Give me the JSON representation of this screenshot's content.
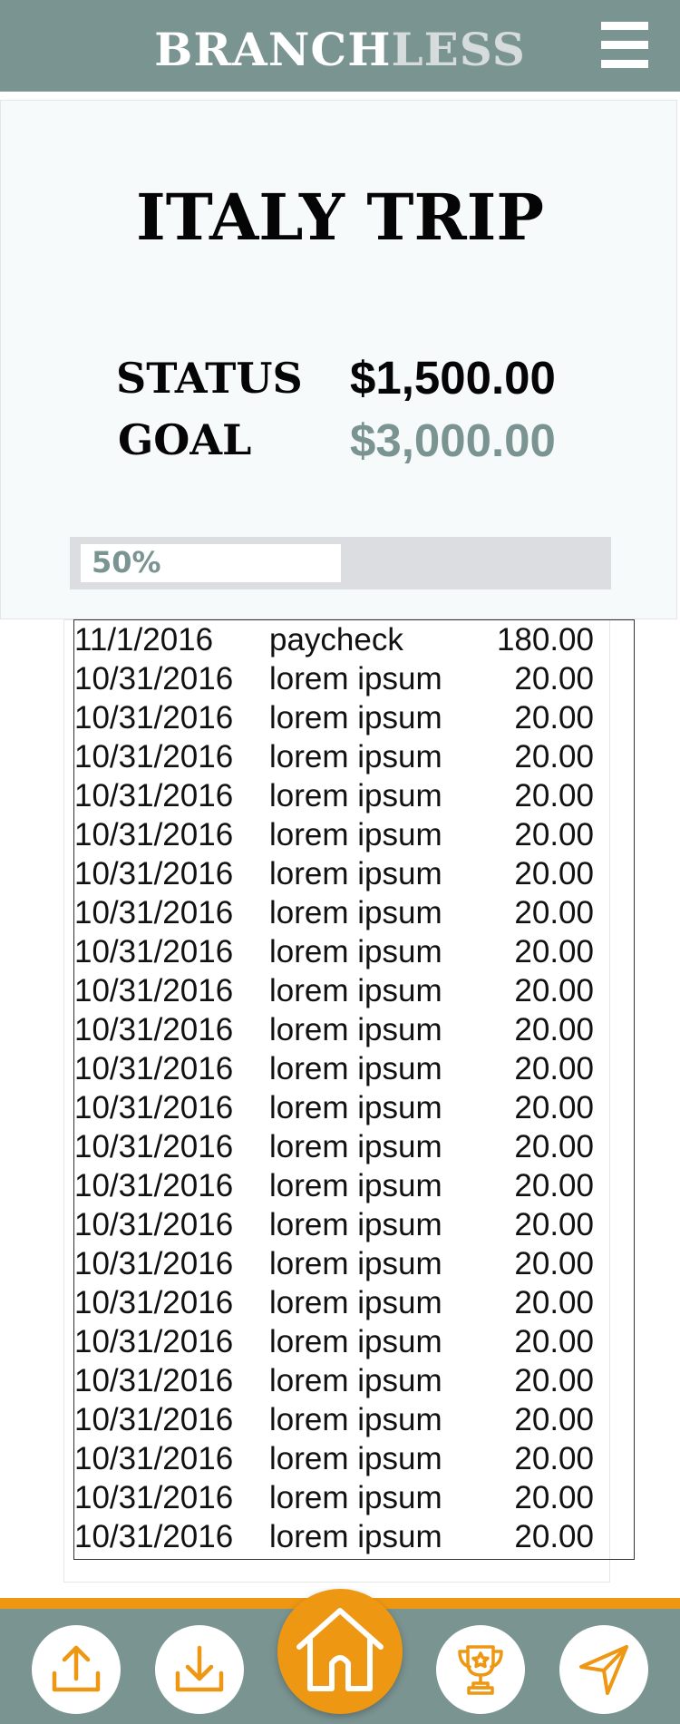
{
  "header": {
    "brand_primary": "BRANCH",
    "brand_secondary": "LESS",
    "menu_icon": "hamburger-menu-icon"
  },
  "goal_card": {
    "title": "ITALY TRIP",
    "status_label": "STATUS",
    "status_amount": "$1,500.00",
    "goal_label": "GOAL",
    "goal_amount": "$3,000.00",
    "progress_label": "50%",
    "progress_fraction": 0.5
  },
  "transactions": [
    {
      "date": "11/1/2016",
      "description": "paycheck",
      "amount": "180.00"
    },
    {
      "date": "10/31/2016",
      "description": "lorem ipsum",
      "amount": "20.00"
    },
    {
      "date": "10/31/2016",
      "description": "lorem ipsum",
      "amount": "20.00"
    },
    {
      "date": "10/31/2016",
      "description": "lorem ipsum",
      "amount": "20.00"
    },
    {
      "date": "10/31/2016",
      "description": "lorem ipsum",
      "amount": "20.00"
    },
    {
      "date": "10/31/2016",
      "description": "lorem ipsum",
      "amount": "20.00"
    },
    {
      "date": "10/31/2016",
      "description": "lorem ipsum",
      "amount": "20.00"
    },
    {
      "date": "10/31/2016",
      "description": "lorem ipsum",
      "amount": "20.00"
    },
    {
      "date": "10/31/2016",
      "description": "lorem ipsum",
      "amount": "20.00"
    },
    {
      "date": "10/31/2016",
      "description": "lorem ipsum",
      "amount": "20.00"
    },
    {
      "date": "10/31/2016",
      "description": "lorem ipsum",
      "amount": "20.00"
    },
    {
      "date": "10/31/2016",
      "description": "lorem ipsum",
      "amount": "20.00"
    },
    {
      "date": "10/31/2016",
      "description": "lorem ipsum",
      "amount": "20.00"
    },
    {
      "date": "10/31/2016",
      "description": "lorem ipsum",
      "amount": "20.00"
    },
    {
      "date": "10/31/2016",
      "description": "lorem ipsum",
      "amount": "20.00"
    },
    {
      "date": "10/31/2016",
      "description": "lorem ipsum",
      "amount": "20.00"
    },
    {
      "date": "10/31/2016",
      "description": "lorem ipsum",
      "amount": "20.00"
    },
    {
      "date": "10/31/2016",
      "description": "lorem ipsum",
      "amount": "20.00"
    },
    {
      "date": "10/31/2016",
      "description": "lorem ipsum",
      "amount": "20.00"
    },
    {
      "date": "10/31/2016",
      "description": "lorem ipsum",
      "amount": "20.00"
    },
    {
      "date": "10/31/2016",
      "description": "lorem ipsum",
      "amount": "20.00"
    },
    {
      "date": "10/31/2016",
      "description": "lorem ipsum",
      "amount": "20.00"
    },
    {
      "date": "10/31/2016",
      "description": "lorem ipsum",
      "amount": "20.00"
    },
    {
      "date": "10/31/2016",
      "description": "lorem ipsum",
      "amount": "20.00"
    }
  ],
  "footer_nav": {
    "items": [
      {
        "icon": "upload-icon"
      },
      {
        "icon": "download-icon"
      },
      {
        "icon": "home-icon"
      },
      {
        "icon": "trophy-icon"
      },
      {
        "icon": "send-icon"
      }
    ]
  },
  "colors": {
    "brand_teal": "#7a9492",
    "accent_orange": "#ee9713",
    "card_background": "#f7fafa"
  }
}
